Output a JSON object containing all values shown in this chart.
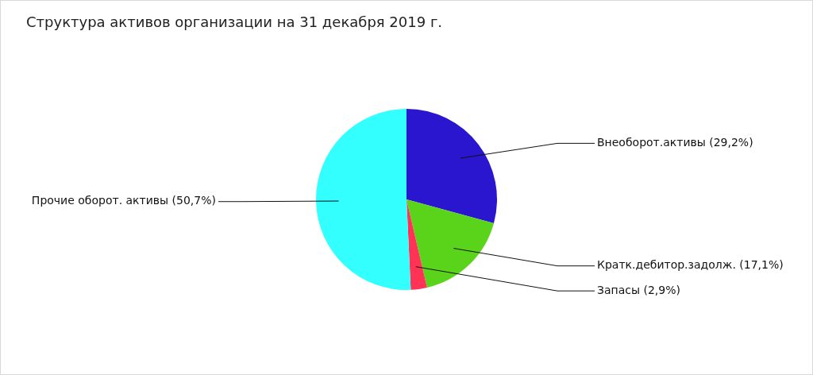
{
  "chart_data": {
    "type": "pie",
    "title": "Структура активов организации на 31 декабря 2019 г.",
    "categories": [
      "Внеоборот.активы",
      "Кратк.дебитор.задолж.",
      "Запасы",
      "Прочие оборот. активы"
    ],
    "values": [
      29.2,
      17.1,
      2.9,
      50.7
    ],
    "colors": [
      "#2a16cf",
      "#5ad41a",
      "#ff3355",
      "#33ffff"
    ],
    "value_labels": [
      "(29,2%)",
      "(17,1%)",
      "(2,9%)",
      "(50,7%)"
    ],
    "legend": false
  }
}
